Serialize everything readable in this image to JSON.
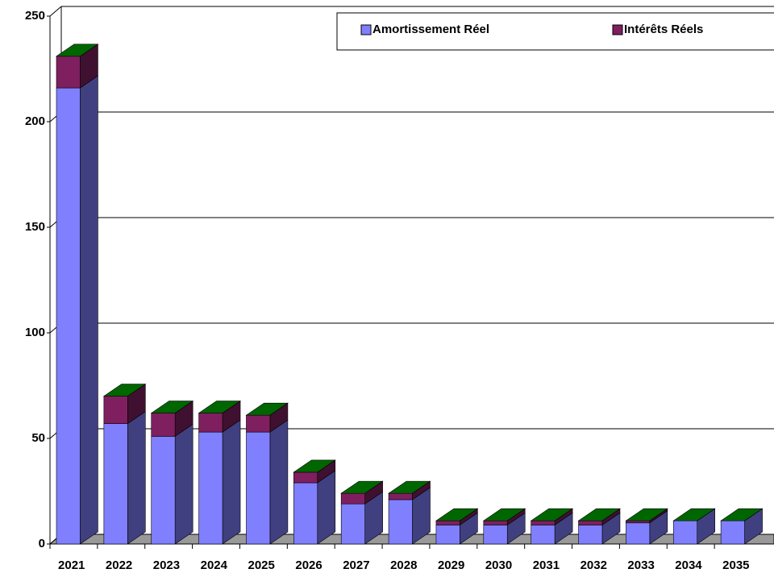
{
  "chart_data": {
    "type": "bar3d_stacked",
    "categories": [
      "2021",
      "2022",
      "2023",
      "2024",
      "2025",
      "2026",
      "2027",
      "2028",
      "2029",
      "2030",
      "2031",
      "2032",
      "2033",
      "2034",
      "2035"
    ],
    "series": [
      {
        "name": "Amortissement Réel",
        "color": "#8080ff",
        "values": [
          216,
          57,
          51,
          53,
          53,
          29,
          19,
          21,
          9,
          9,
          9,
          9,
          10,
          11,
          11
        ]
      },
      {
        "name": "Intérêts Réels",
        "color": "#7f1f5f",
        "values": [
          15,
          13,
          11,
          9,
          8,
          5,
          5,
          3,
          2,
          2,
          2,
          2,
          1,
          0,
          0
        ]
      }
    ],
    "ylim": [
      0,
      250
    ],
    "yticks": [
      0,
      50,
      100,
      150,
      200,
      250
    ],
    "grid": true
  }
}
